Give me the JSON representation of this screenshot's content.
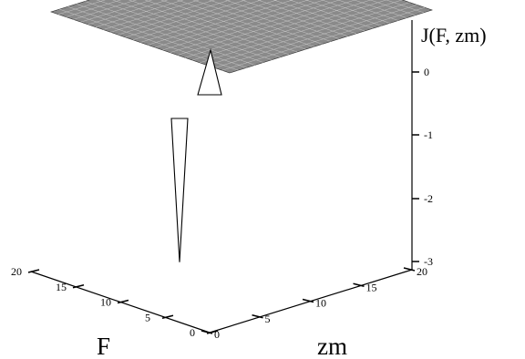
{
  "chart_data": {
    "type": "surface3d",
    "z_label": "J(F, zm)",
    "x_label": "zm",
    "y_label": "F",
    "x_ticks": [
      0,
      5,
      10,
      15,
      20
    ],
    "y_ticks": [
      0,
      5,
      10,
      15,
      20
    ],
    "z_ticks": [
      0,
      -1,
      -2,
      -3
    ],
    "x_range": [
      0,
      20
    ],
    "y_range": [
      0,
      20
    ],
    "z_range": [
      -3,
      0.5
    ],
    "baseline": 0,
    "features": [
      {
        "kind": "peak",
        "z": 0.5
      },
      {
        "kind": "trough",
        "z": -2.8
      }
    ],
    "grid": false
  }
}
